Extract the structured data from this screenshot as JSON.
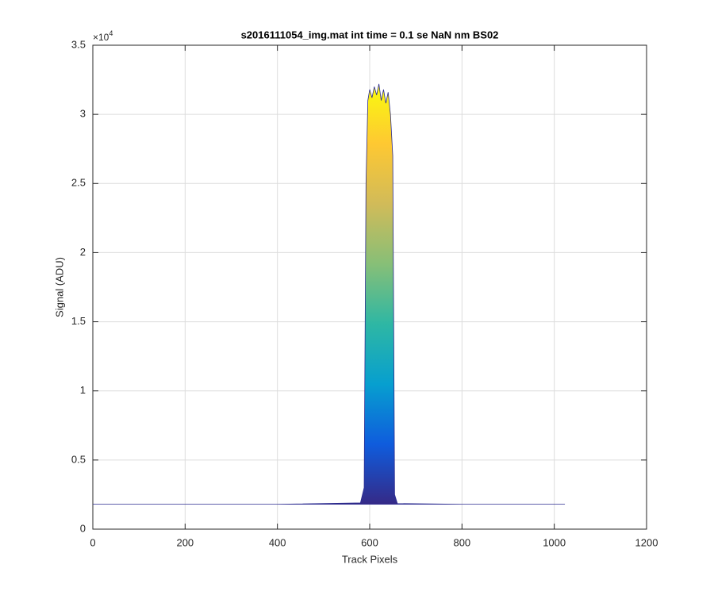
{
  "chart_data": {
    "type": "area",
    "title": "s2016111054_img.mat int time = 0.1 se  NaN nm BS02",
    "x_label": "Track Pixels",
    "y_label": "Signal (ADU)",
    "y_multiplier": {
      "base": "×10",
      "power": "4"
    },
    "x": [
      0,
      200,
      400,
      580,
      588,
      592,
      596,
      600,
      605,
      610,
      615,
      620,
      625,
      630,
      635,
      640,
      645,
      650,
      654,
      660,
      800,
      1023
    ],
    "series": [
      {
        "values": [
          1800,
          1800,
          1800,
          1900,
          3000,
          25000,
          31000,
          31800,
          31200,
          32000,
          31400,
          32200,
          31000,
          31800,
          30800,
          31600,
          30000,
          27000,
          2500,
          1850,
          1800,
          1800
        ],
        "color": "#2a2a8f"
      }
    ],
    "colormap": [
      "#352a87",
      "#0f5cdd",
      "#079fcf",
      "#2eb7a4",
      "#87bf77",
      "#d1bb59",
      "#fec832",
      "#f9fb0e"
    ],
    "xlim": [
      0,
      1200
    ],
    "xticks": [
      0,
      200,
      400,
      600,
      800,
      1000,
      1200
    ],
    "ylim": [
      0,
      35000
    ],
    "yticks": [
      0,
      {
        "value": 5000,
        "label": "0.5"
      },
      {
        "value": 10000,
        "label": "1"
      },
      {
        "value": 15000,
        "label": "1.5"
      },
      {
        "value": 20000,
        "label": "2"
      },
      {
        "value": 25000,
        "label": "2.5"
      },
      {
        "value": 30000,
        "label": "3"
      },
      {
        "value": 35000,
        "label": "3.5"
      }
    ],
    "grid": true
  }
}
